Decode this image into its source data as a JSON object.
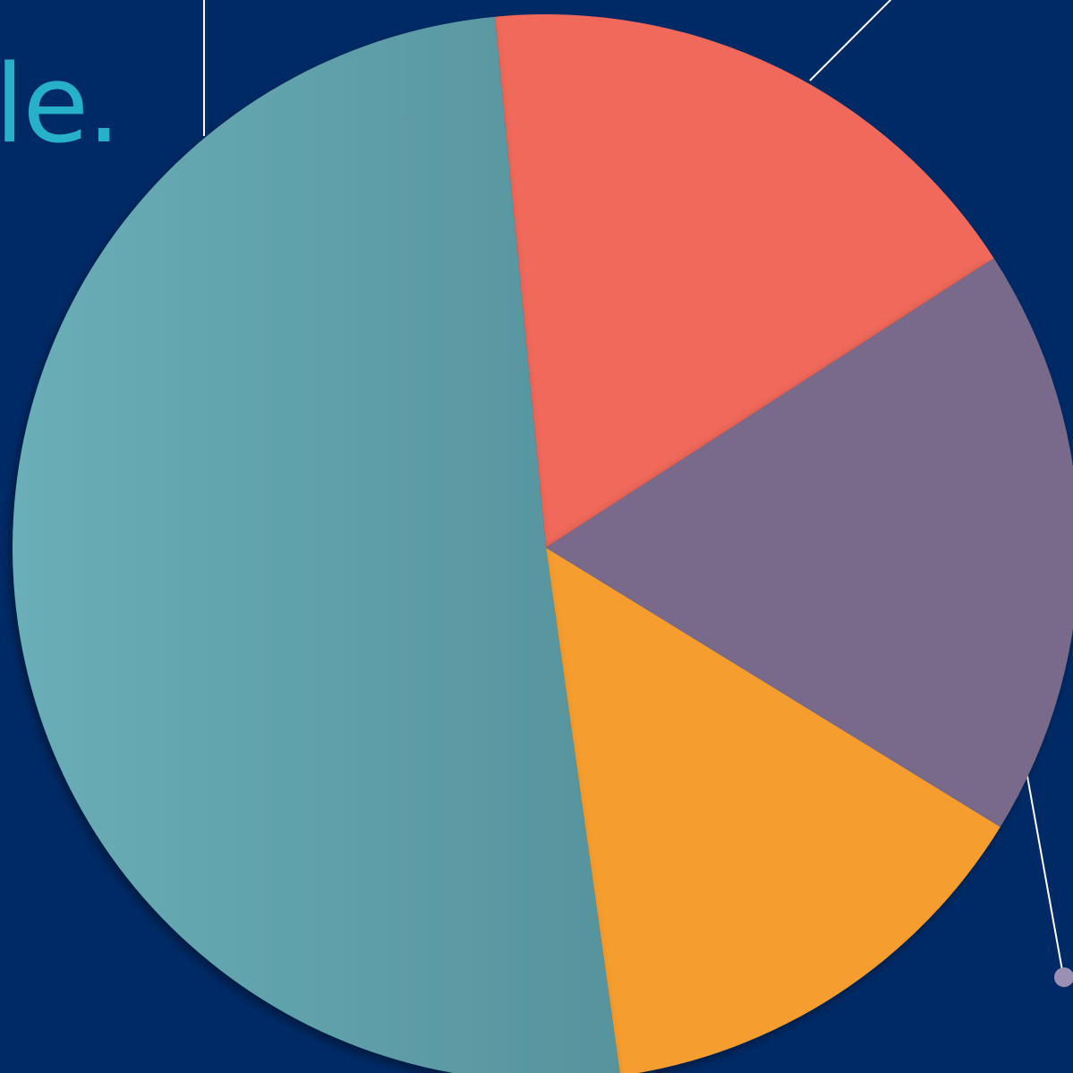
{
  "page": {
    "background": "#002a66"
  },
  "title_fragment": {
    "text": "le.",
    "color": "#26b1c8"
  },
  "chart_data": {
    "type": "pie",
    "start_angle_deg": -5.5,
    "direction": "clockwise",
    "slices": [
      {
        "name": "",
        "value": 17.4,
        "color": "#f0695a"
      },
      {
        "name": "",
        "value": 17.9,
        "color": "#796a8c"
      },
      {
        "name": "",
        "value": 14.0,
        "color": "#f59d2f"
      },
      {
        "name": "",
        "value": 50.7,
        "color": "#5e9ea6"
      }
    ],
    "leader_lines": {
      "color": "#ffffff",
      "dot_color": "#9b8fb3"
    },
    "legend": "none",
    "title": ""
  }
}
